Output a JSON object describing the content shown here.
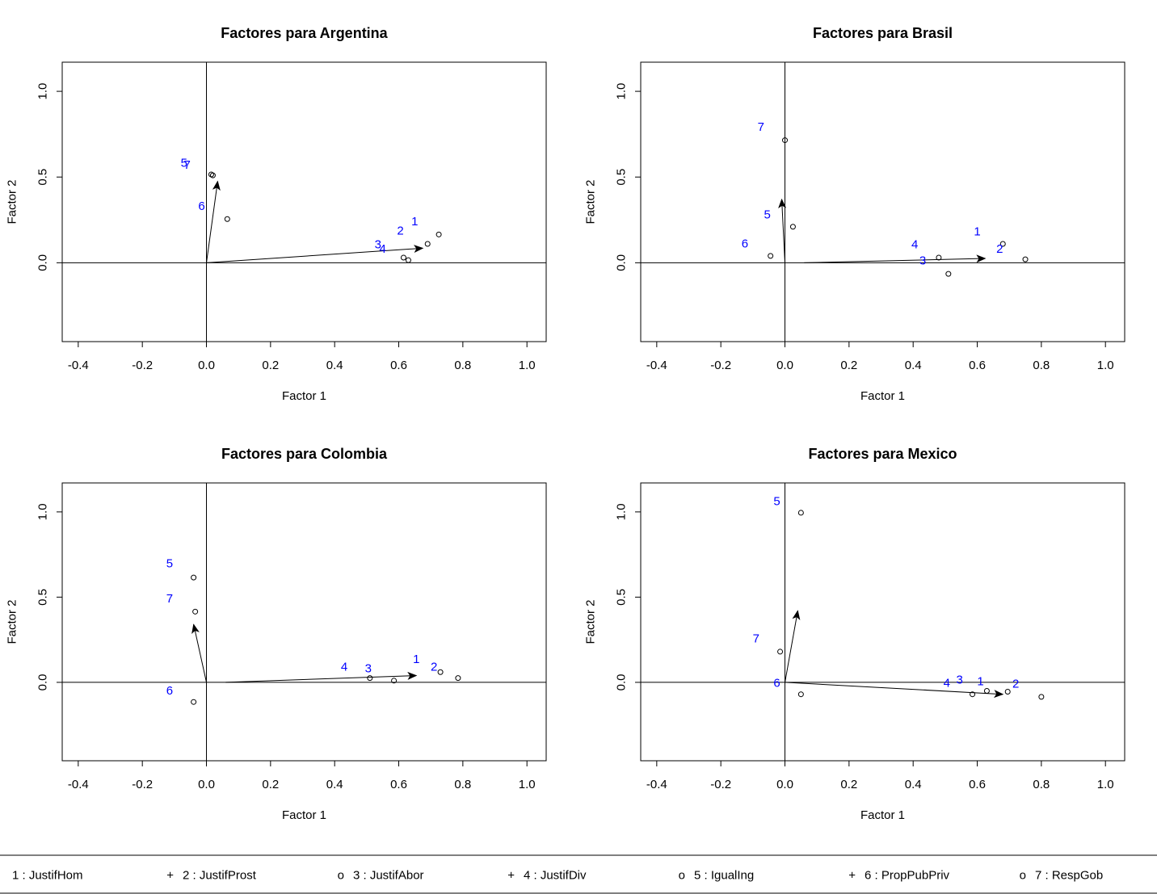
{
  "chart_data": [
    {
      "type": "scatter",
      "title": "Factores para Argentina",
      "xlabel": "Factor 1",
      "ylabel": "Factor 2",
      "xlim": [
        -0.45,
        1.06
      ],
      "ylim": [
        -0.46,
        1.17
      ],
      "xticks": [
        -0.4,
        -0.2,
        0.0,
        0.2,
        0.4,
        0.6,
        0.8,
        1.0
      ],
      "xtick_labels": [
        "-0.4",
        "-0.2",
        "0.0",
        "0.2",
        "0.4",
        "0.6",
        "0.8",
        "1.0"
      ],
      "yticks": [
        0.0,
        0.5,
        1.0
      ],
      "ytick_labels": [
        "0.0",
        "0.5",
        "1.0"
      ],
      "points": [
        [
          0.02,
          0.51
        ],
        [
          0.015,
          0.515
        ],
        [
          0.065,
          0.255
        ],
        [
          0.615,
          0.03
        ],
        [
          0.63,
          0.015
        ],
        [
          0.69,
          0.11
        ],
        [
          0.725,
          0.165
        ]
      ],
      "arrows": [
        [
          0,
          0,
          0.035,
          0.475
        ],
        [
          0,
          0,
          0.675,
          0.085
        ]
      ],
      "labels": [
        {
          "text": "5",
          "x": -0.07,
          "y": 0.58
        },
        {
          "text": "7",
          "x": -0.06,
          "y": 0.57
        },
        {
          "text": "6",
          "x": -0.015,
          "y": 0.33
        },
        {
          "text": "1",
          "x": 0.65,
          "y": 0.24
        },
        {
          "text": "2",
          "x": 0.605,
          "y": 0.185
        },
        {
          "text": "3",
          "x": 0.535,
          "y": 0.105
        },
        {
          "text": "4",
          "x": 0.55,
          "y": 0.08
        }
      ]
    },
    {
      "type": "scatter",
      "title": "Factores para Brasil",
      "xlabel": "Factor 1",
      "ylabel": "Factor 2",
      "xlim": [
        -0.45,
        1.06
      ],
      "ylim": [
        -0.46,
        1.17
      ],
      "xticks": [
        -0.4,
        -0.2,
        0.0,
        0.2,
        0.4,
        0.6,
        0.8,
        1.0
      ],
      "xtick_labels": [
        "-0.4",
        "-0.2",
        "0.0",
        "0.2",
        "0.4",
        "0.6",
        "0.8",
        "1.0"
      ],
      "yticks": [
        0.0,
        0.5,
        1.0
      ],
      "ytick_labels": [
        "0.0",
        "0.5",
        "1.0"
      ],
      "points": [
        [
          0.0,
          0.715
        ],
        [
          0.025,
          0.21
        ],
        [
          -0.045,
          0.04
        ],
        [
          0.48,
          0.03
        ],
        [
          0.51,
          -0.065
        ],
        [
          0.68,
          0.11
        ],
        [
          0.75,
          0.02
        ]
      ],
      "arrows": [
        [
          0,
          0,
          -0.01,
          0.37
        ],
        [
          0.06,
          0.0,
          0.625,
          0.025
        ]
      ],
      "labels": [
        {
          "text": "7",
          "x": -0.075,
          "y": 0.79
        },
        {
          "text": "5",
          "x": -0.055,
          "y": 0.28
        },
        {
          "text": "6",
          "x": -0.125,
          "y": 0.11
        },
        {
          "text": "4",
          "x": 0.405,
          "y": 0.105
        },
        {
          "text": "3",
          "x": 0.43,
          "y": 0.01
        },
        {
          "text": "1",
          "x": 0.6,
          "y": 0.18
        },
        {
          "text": "2",
          "x": 0.67,
          "y": 0.08
        }
      ]
    },
    {
      "type": "scatter",
      "title": "Factores para Colombia",
      "xlabel": "Factor 1",
      "ylabel": "Factor 2",
      "xlim": [
        -0.45,
        1.06
      ],
      "ylim": [
        -0.46,
        1.17
      ],
      "xticks": [
        -0.4,
        -0.2,
        0.0,
        0.2,
        0.4,
        0.6,
        0.8,
        1.0
      ],
      "xtick_labels": [
        "-0.4",
        "-0.2",
        "0.0",
        "0.2",
        "0.4",
        "0.6",
        "0.8",
        "1.0"
      ],
      "yticks": [
        0.0,
        0.5,
        1.0
      ],
      "ytick_labels": [
        "0.0",
        "0.5",
        "1.0"
      ],
      "points": [
        [
          -0.04,
          0.615
        ],
        [
          -0.035,
          0.415
        ],
        [
          -0.04,
          -0.115
        ],
        [
          0.51,
          0.025
        ],
        [
          0.585,
          0.01
        ],
        [
          0.73,
          0.06
        ],
        [
          0.785,
          0.025
        ]
      ],
      "arrows": [
        [
          0,
          0,
          -0.04,
          0.34
        ],
        [
          0.06,
          0.0,
          0.655,
          0.04
        ]
      ],
      "labels": [
        {
          "text": "5",
          "x": -0.115,
          "y": 0.695
        },
        {
          "text": "7",
          "x": -0.115,
          "y": 0.49
        },
        {
          "text": "6",
          "x": -0.115,
          "y": -0.05
        },
        {
          "text": "4",
          "x": 0.43,
          "y": 0.09
        },
        {
          "text": "3",
          "x": 0.505,
          "y": 0.08
        },
        {
          "text": "1",
          "x": 0.655,
          "y": 0.135
        },
        {
          "text": "2",
          "x": 0.71,
          "y": 0.09
        }
      ]
    },
    {
      "type": "scatter",
      "title": "Factores para Mexico",
      "xlabel": "Factor 1",
      "ylabel": "Factor 2",
      "xlim": [
        -0.45,
        1.06
      ],
      "ylim": [
        -0.46,
        1.17
      ],
      "xticks": [
        -0.4,
        -0.2,
        0.0,
        0.2,
        0.4,
        0.6,
        0.8,
        1.0
      ],
      "xtick_labels": [
        "-0.4",
        "-0.2",
        "0.0",
        "0.2",
        "0.4",
        "0.6",
        "0.8",
        "1.0"
      ],
      "yticks": [
        0.0,
        0.5,
        1.0
      ],
      "ytick_labels": [
        "0.0",
        "0.5",
        "1.0"
      ],
      "points": [
        [
          0.05,
          0.995
        ],
        [
          -0.015,
          0.18
        ],
        [
          0.05,
          -0.07
        ],
        [
          0.585,
          -0.07
        ],
        [
          0.63,
          -0.05
        ],
        [
          0.695,
          -0.055
        ],
        [
          0.8,
          -0.085
        ]
      ],
      "arrows": [
        [
          0,
          0,
          0.04,
          0.42
        ],
        [
          0.0,
          0.0,
          0.68,
          -0.07
        ]
      ],
      "labels": [
        {
          "text": "5",
          "x": -0.025,
          "y": 1.06
        },
        {
          "text": "7",
          "x": -0.09,
          "y": 0.255
        },
        {
          "text": "6",
          "x": -0.025,
          "y": -0.005
        },
        {
          "text": "4",
          "x": 0.505,
          "y": -0.005
        },
        {
          "text": "3",
          "x": 0.545,
          "y": 0.015
        },
        {
          "text": "1",
          "x": 0.61,
          "y": 0.005
        },
        {
          "text": "2",
          "x": 0.72,
          "y": -0.01
        }
      ]
    }
  ],
  "legend": {
    "entries": [
      {
        "symbol": "",
        "text": "1 : JustifHom"
      },
      {
        "symbol": "+",
        "text": "2 : JustifProst"
      },
      {
        "symbol": "o",
        "text": "3 : JustifAbor"
      },
      {
        "symbol": "+",
        "text": "4 : JustifDiv"
      },
      {
        "symbol": "o",
        "text": "5 : IgualIng"
      },
      {
        "symbol": "+",
        "text": "6 : PropPubPriv"
      },
      {
        "symbol": "o",
        "text": "7 : RespGob"
      }
    ]
  },
  "colors": {
    "label": "#0000ff",
    "axis": "#000000",
    "background": "#ffffff"
  }
}
